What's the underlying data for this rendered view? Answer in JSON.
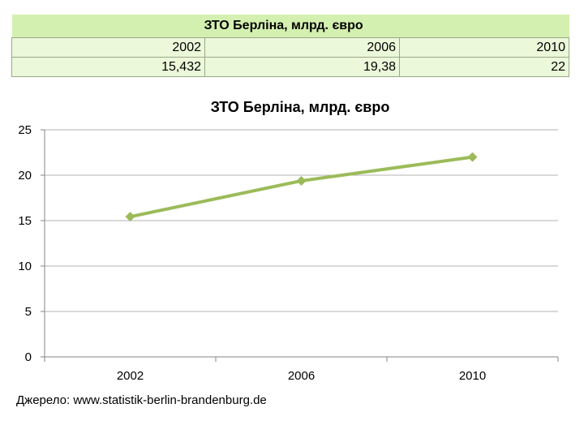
{
  "table": {
    "title": "ЗТО Берліна, млрд. євро",
    "years": [
      "2002",
      "2006",
      "2010"
    ],
    "values": [
      "15,432",
      "19,38",
      "22"
    ]
  },
  "chart_data": {
    "type": "line",
    "title": "ЗТО Берліна, млрд. євро",
    "categories": [
      "2002",
      "2006",
      "2010"
    ],
    "series": [
      {
        "values": [
          15.432,
          19.38,
          22
        ]
      }
    ],
    "ylim": [
      0,
      25
    ],
    "yticks": [
      0,
      5,
      10,
      15,
      20,
      25
    ],
    "grid": true,
    "color": "#9bbb59"
  },
  "source": "Джерело: www.statistik-berlin-brandenburg.de"
}
